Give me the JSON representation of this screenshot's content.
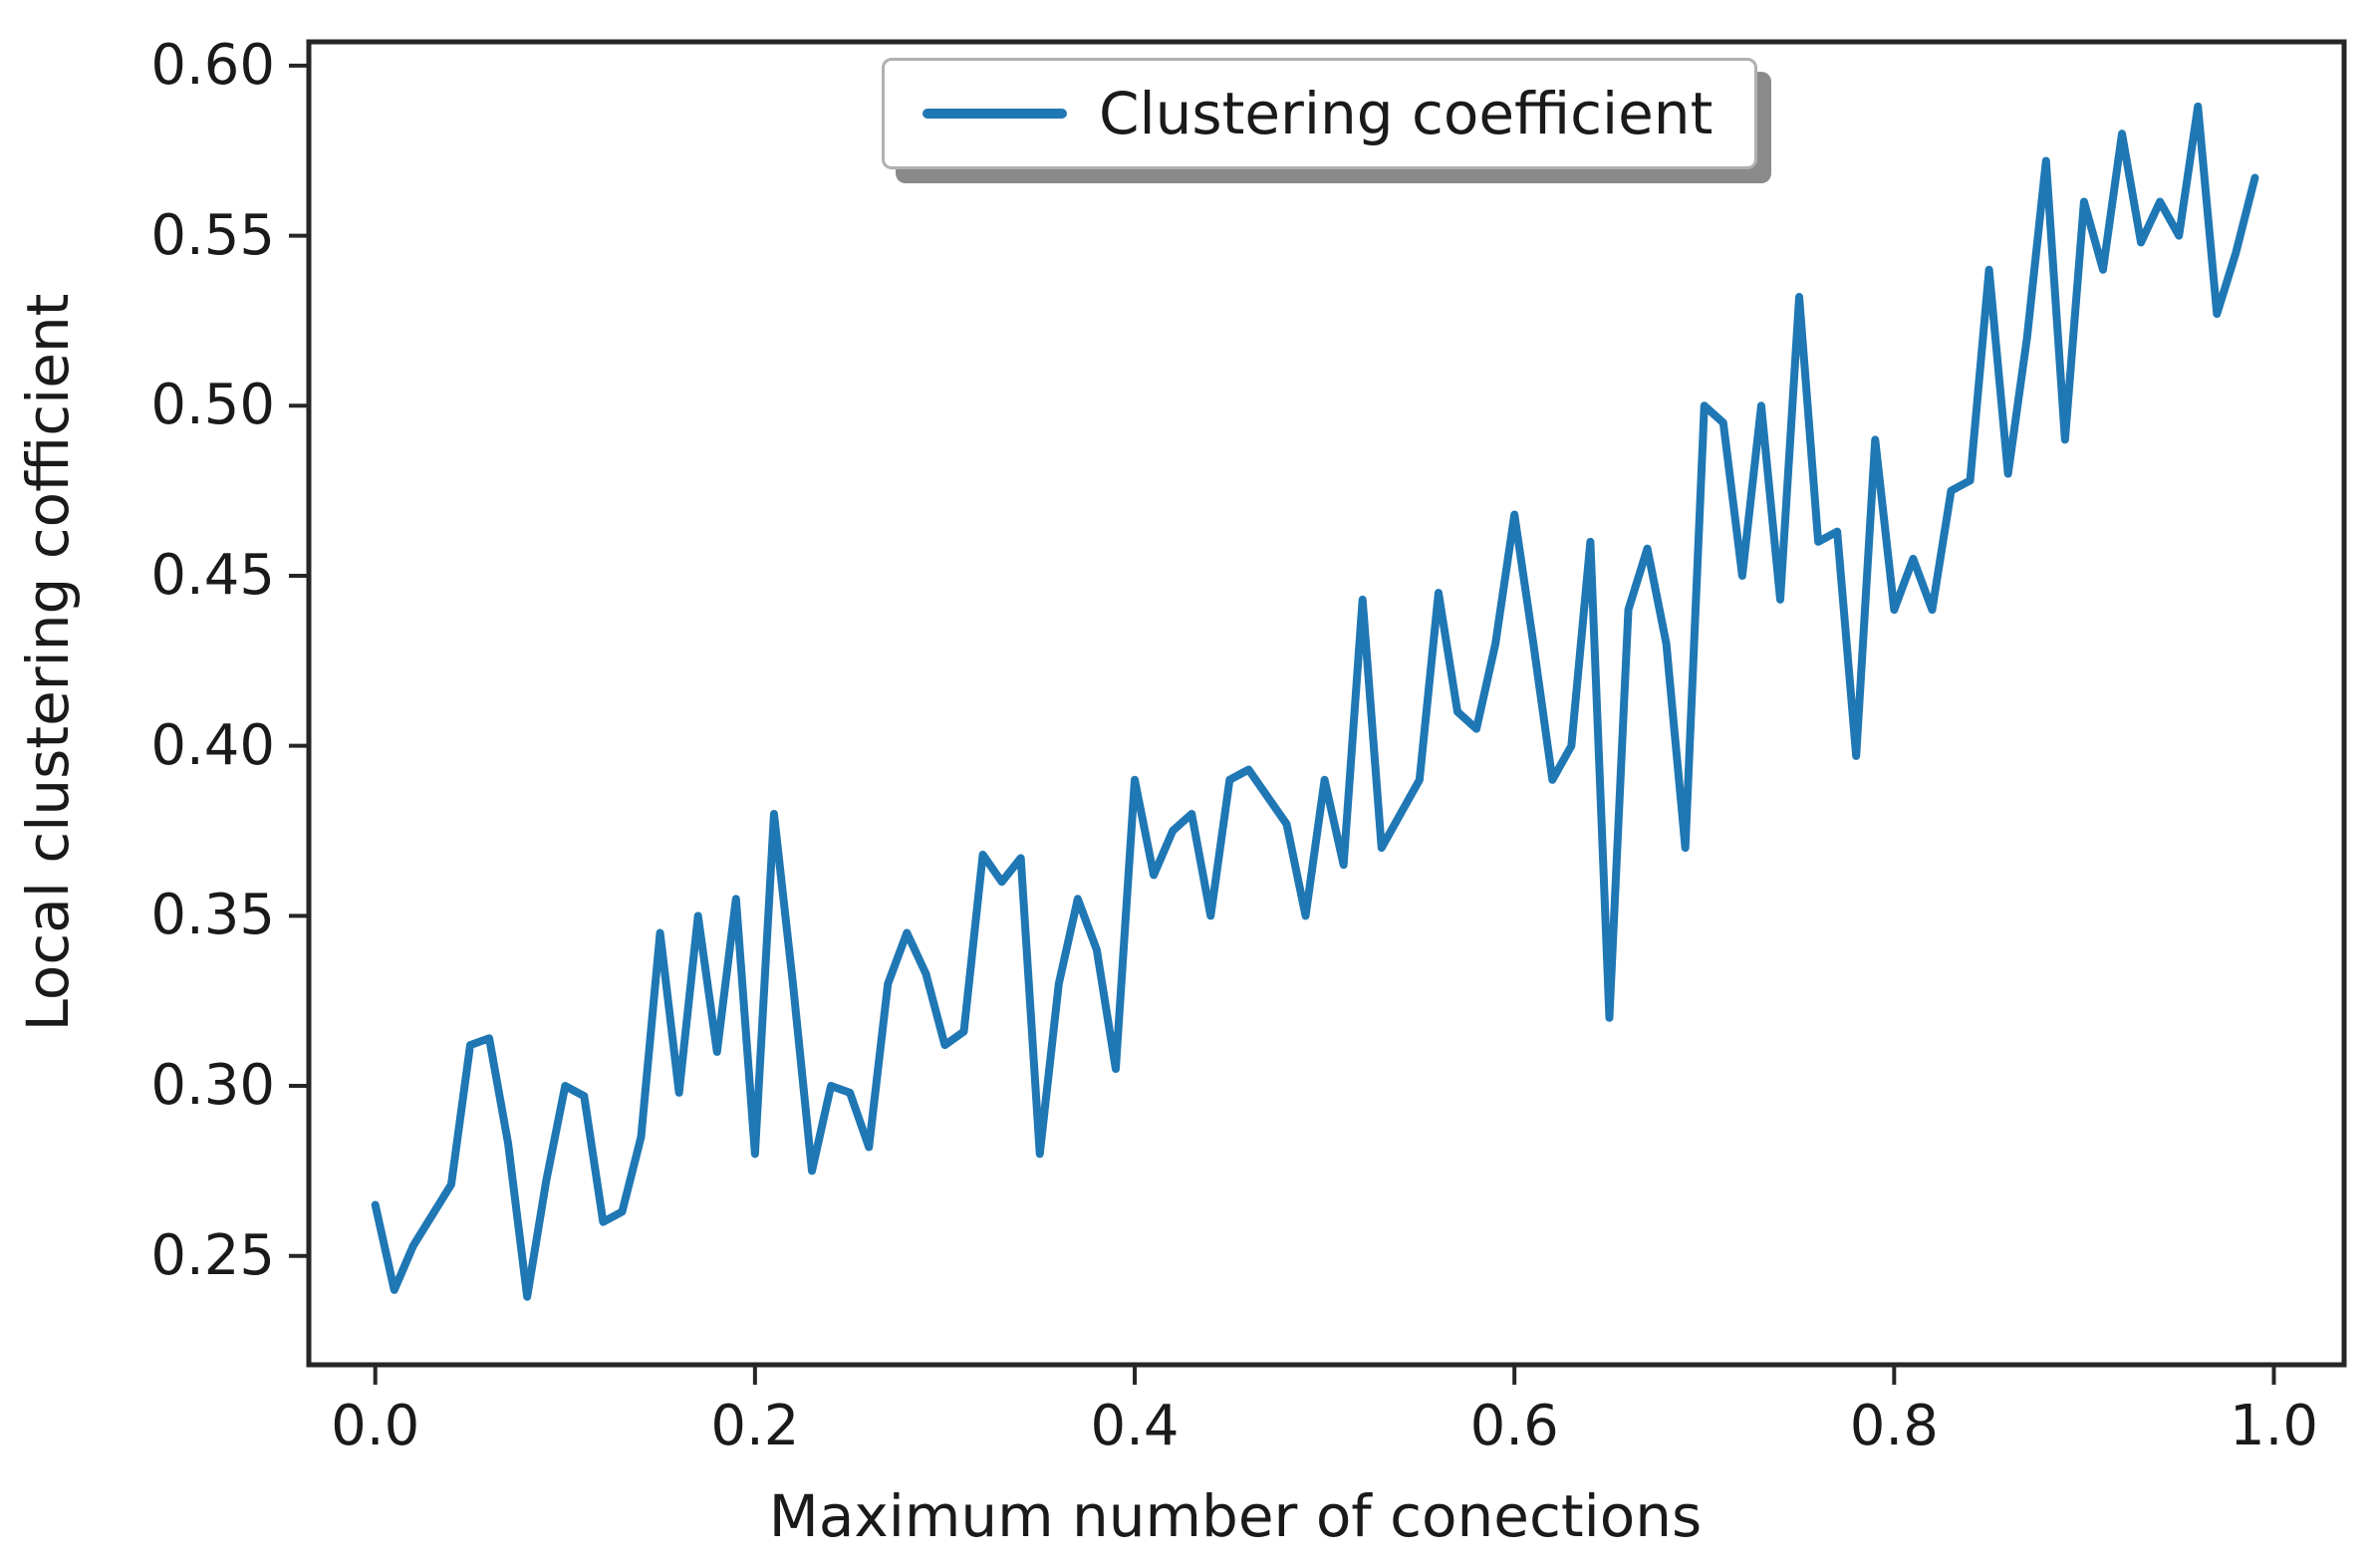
{
  "figure": {
    "background": "#ffffff",
    "axis_color": "#262626",
    "text_color": "#1a1a1a"
  },
  "chart_data": {
    "type": "line",
    "title": "",
    "xlabel": "Maximum number of conections",
    "ylabel": "Local clustering cofficient",
    "grid": false,
    "legend": {
      "position": "upper center",
      "entries": [
        {
          "label": "Clustering coefficient",
          "color": "#1f77b4"
        }
      ]
    },
    "xticks": [
      "0.0",
      "0.2",
      "0.4",
      "0.6",
      "0.8",
      "1.0"
    ],
    "yticks": [
      "0.25",
      "0.30",
      "0.35",
      "0.40",
      "0.45",
      "0.50",
      "0.55",
      "0.60"
    ],
    "xlim": [
      -0.035,
      1.037
    ],
    "ylim": [
      0.218,
      0.607
    ],
    "x": [
      0.0,
      0.01,
      0.02,
      0.03,
      0.04,
      0.05,
      0.06,
      0.07,
      0.08,
      0.09,
      0.1,
      0.11,
      0.12,
      0.13,
      0.14,
      0.15,
      0.16,
      0.17,
      0.18,
      0.19,
      0.2,
      0.21,
      0.22,
      0.23,
      0.24,
      0.25,
      0.26,
      0.27,
      0.28,
      0.29,
      0.3,
      0.31,
      0.32,
      0.33,
      0.34,
      0.35,
      0.36,
      0.37,
      0.38,
      0.39,
      0.4,
      0.41,
      0.42,
      0.43,
      0.44,
      0.45,
      0.46,
      0.47,
      0.48,
      0.49,
      0.5,
      0.51,
      0.52,
      0.53,
      0.54,
      0.55,
      0.56,
      0.57,
      0.58,
      0.59,
      0.6,
      0.61,
      0.62,
      0.63,
      0.64,
      0.65,
      0.66,
      0.67,
      0.68,
      0.69,
      0.7,
      0.71,
      0.72,
      0.73,
      0.74,
      0.75,
      0.76,
      0.77,
      0.78,
      0.79,
      0.8,
      0.81,
      0.82,
      0.83,
      0.84,
      0.85,
      0.86,
      0.87,
      0.88,
      0.89,
      0.9,
      0.91,
      0.92,
      0.93,
      0.94,
      0.95,
      0.96,
      0.97,
      0.98,
      0.99
    ],
    "series": [
      {
        "name": "Clustering coefficient",
        "color": "#1f77b4",
        "values": [
          0.265,
          0.24,
          0.253,
          0.262,
          0.271,
          0.312,
          0.314,
          0.283,
          0.238,
          0.272,
          0.3,
          0.297,
          0.26,
          0.263,
          0.285,
          0.345,
          0.298,
          0.35,
          0.31,
          0.355,
          0.28,
          0.38,
          0.33,
          0.275,
          0.3,
          0.298,
          0.282,
          0.33,
          0.345,
          0.333,
          0.312,
          0.316,
          0.368,
          0.36,
          0.367,
          0.28,
          0.33,
          0.355,
          0.34,
          0.305,
          0.39,
          0.362,
          0.375,
          0.38,
          0.35,
          0.39,
          0.393,
          0.385,
          0.377,
          0.35,
          0.39,
          0.365,
          0.443,
          0.37,
          0.38,
          0.39,
          0.445,
          0.41,
          0.405,
          0.43,
          0.468,
          0.43,
          0.39,
          0.4,
          0.46,
          0.32,
          0.44,
          0.458,
          0.43,
          0.37,
          0.5,
          0.495,
          0.45,
          0.5,
          0.443,
          0.532,
          0.46,
          0.463,
          0.397,
          0.49,
          0.44,
          0.455,
          0.44,
          0.475,
          0.478,
          0.54,
          0.48,
          0.52,
          0.572,
          0.49,
          0.56,
          0.54,
          0.58,
          0.548,
          0.56,
          0.55,
          0.588,
          0.527,
          0.545,
          0.567
        ]
      }
    ]
  }
}
